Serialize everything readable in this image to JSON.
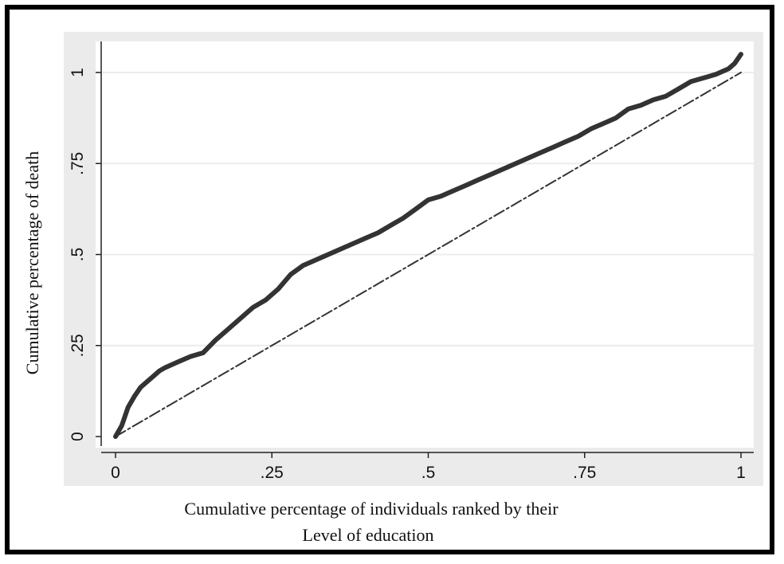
{
  "chart_data": {
    "type": "line",
    "title": "",
    "xlabel_line1": "Cumulative percentage of individuals ranked by their",
    "xlabel_line2": "Level of education",
    "ylabel": "Cumulative percentage of death",
    "xlim": [
      0,
      1
    ],
    "ylim": [
      0,
      1.05
    ],
    "x_ticks": [
      0,
      0.25,
      0.5,
      0.75,
      1
    ],
    "x_tick_labels": [
      "0",
      ".25",
      ".5",
      ".75",
      "1"
    ],
    "y_ticks": [
      0,
      0.25,
      0.5,
      0.75,
      1
    ],
    "y_tick_labels": [
      "0",
      ".25",
      ".5",
      ".75",
      "1"
    ],
    "grid": true,
    "colors": {
      "curve": "#333333",
      "equality": "#333333",
      "plot_bg": "#ffffff",
      "outer_bg": "#ebebeb"
    },
    "series": [
      {
        "style": "solid-thick",
        "x": [
          0,
          0.01,
          0.02,
          0.03,
          0.04,
          0.05,
          0.06,
          0.07,
          0.08,
          0.1,
          0.12,
          0.14,
          0.16,
          0.18,
          0.2,
          0.22,
          0.24,
          0.26,
          0.28,
          0.3,
          0.32,
          0.34,
          0.36,
          0.38,
          0.4,
          0.42,
          0.44,
          0.46,
          0.48,
          0.5,
          0.52,
          0.54,
          0.56,
          0.58,
          0.6,
          0.62,
          0.64,
          0.66,
          0.68,
          0.7,
          0.72,
          0.74,
          0.76,
          0.78,
          0.8,
          0.82,
          0.84,
          0.86,
          0.88,
          0.9,
          0.92,
          0.94,
          0.96,
          0.98,
          0.99,
          1.0
        ],
        "y": [
          0,
          0.03,
          0.08,
          0.11,
          0.135,
          0.15,
          0.165,
          0.18,
          0.19,
          0.205,
          0.22,
          0.23,
          0.265,
          0.295,
          0.325,
          0.355,
          0.375,
          0.405,
          0.445,
          0.47,
          0.485,
          0.5,
          0.515,
          0.53,
          0.545,
          0.56,
          0.58,
          0.6,
          0.625,
          0.65,
          0.66,
          0.675,
          0.69,
          0.705,
          0.72,
          0.735,
          0.75,
          0.765,
          0.78,
          0.795,
          0.81,
          0.825,
          0.845,
          0.86,
          0.875,
          0.9,
          0.91,
          0.925,
          0.935,
          0.955,
          0.975,
          0.985,
          0.995,
          1.01,
          1.025,
          1.05
        ]
      },
      {
        "style": "dashed",
        "x": [
          0,
          1
        ],
        "y": [
          0,
          1
        ]
      }
    ]
  }
}
